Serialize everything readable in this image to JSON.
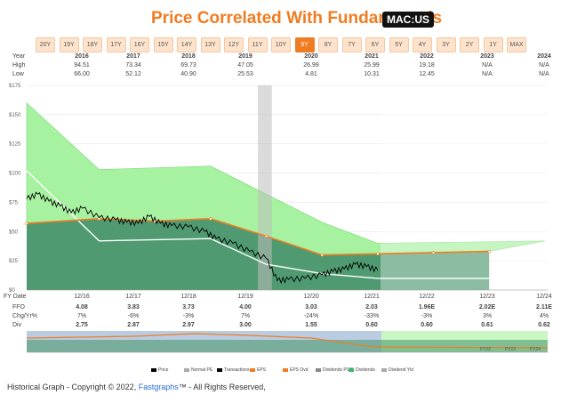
{
  "header": {
    "title": "Price Correlated With Fundamentals",
    "ticker": "MAC:US"
  },
  "range_tabs": [
    "20Y",
    "19Y",
    "18Y",
    "17Y",
    "16Y",
    "15Y",
    "14Y",
    "13Y",
    "12Y",
    "11Y",
    "10Y",
    "9Y",
    "8Y",
    "7Y",
    "6Y",
    "5Y",
    "4Y",
    "3Y",
    "2Y",
    "1Y",
    "MAX"
  ],
  "active_tab": "9Y",
  "top_table": {
    "year_label": "Year",
    "high_label": "High",
    "low_label": "Low",
    "years": [
      "2016",
      "2017",
      "2018",
      "2019",
      "2020",
      "2021",
      "2022",
      "2023",
      "2024"
    ],
    "high": [
      "94.51",
      "73.34",
      "69.73",
      "47.05",
      "26.99",
      "25.99",
      "19.18",
      "N/A",
      "N/A"
    ],
    "low": [
      "66.00",
      "52.12",
      "40.90",
      "25.53",
      "4.81",
      "10.31",
      "12.45",
      "N/A",
      "N/A"
    ]
  },
  "chart_data": {
    "type": "area",
    "y_ticks": [
      "$175",
      "$150",
      "$125",
      "$100",
      "$75",
      "$50",
      "$25",
      "$0"
    ],
    "ylim": [
      0,
      175
    ],
    "x_ticks": [
      "12/16",
      "12/17",
      "12/18",
      "12/19",
      "12/20",
      "12/21",
      "12/22",
      "12/23",
      "12/24"
    ],
    "fy_date_label": "FY Date",
    "normal_pe_upper": [
      {
        "x": 2015.6,
        "y": 160
      },
      {
        "x": 2016.9,
        "y": 103
      },
      {
        "x": 2018.9,
        "y": 106
      },
      {
        "x": 2020.9,
        "y": 58
      },
      {
        "x": 2021.9,
        "y": 40
      },
      {
        "x": 2024.9,
        "y": 42
      }
    ],
    "eps_line": [
      {
        "x": 2015.6,
        "y": 57
      },
      {
        "x": 2016.9,
        "y": 61
      },
      {
        "x": 2017.9,
        "y": 59
      },
      {
        "x": 2018.9,
        "y": 61
      },
      {
        "x": 2019.9,
        "y": 46
      },
      {
        "x": 2020.9,
        "y": 30
      },
      {
        "x": 2021.9,
        "y": 31
      },
      {
        "x": 2022.9,
        "y": 32
      },
      {
        "x": 2023.9,
        "y": 33
      }
    ],
    "normal_pe_line": [
      {
        "x": 2015.6,
        "y": 102
      },
      {
        "x": 2016.9,
        "y": 42
      },
      {
        "x": 2018.9,
        "y": 44
      },
      {
        "x": 2019.9,
        "y": 22
      },
      {
        "x": 2020.9,
        "y": 14
      },
      {
        "x": 2021.9,
        "y": 10
      },
      {
        "x": 2023.9,
        "y": 10
      }
    ],
    "price": [
      {
        "x": 2015.6,
        "y": 78
      },
      {
        "x": 2015.8,
        "y": 82
      },
      {
        "x": 2016.0,
        "y": 76
      },
      {
        "x": 2016.2,
        "y": 72
      },
      {
        "x": 2016.4,
        "y": 66
      },
      {
        "x": 2016.6,
        "y": 70
      },
      {
        "x": 2016.9,
        "y": 62
      },
      {
        "x": 2017.2,
        "y": 60
      },
      {
        "x": 2017.4,
        "y": 58
      },
      {
        "x": 2017.6,
        "y": 57
      },
      {
        "x": 2017.8,
        "y": 63
      },
      {
        "x": 2018.0,
        "y": 57
      },
      {
        "x": 2018.2,
        "y": 55
      },
      {
        "x": 2018.5,
        "y": 54
      },
      {
        "x": 2018.8,
        "y": 50
      },
      {
        "x": 2019.0,
        "y": 44
      },
      {
        "x": 2019.3,
        "y": 40
      },
      {
        "x": 2019.6,
        "y": 33
      },
      {
        "x": 2019.9,
        "y": 27
      },
      {
        "x": 2020.1,
        "y": 8
      },
      {
        "x": 2020.3,
        "y": 9
      },
      {
        "x": 2020.6,
        "y": 10
      },
      {
        "x": 2020.9,
        "y": 13
      },
      {
        "x": 2021.1,
        "y": 16
      },
      {
        "x": 2021.3,
        "y": 18
      },
      {
        "x": 2021.5,
        "y": 22
      },
      {
        "x": 2021.7,
        "y": 20
      },
      {
        "x": 2021.9,
        "y": 17
      }
    ],
    "recession_band": [
      2019.75,
      2020.0
    ]
  },
  "bottom_table": {
    "ffo_label": "FFO",
    "chg_label": "Chg/Yr%",
    "div_label": "Div",
    "ffo": [
      "4.08",
      "3.83",
      "3.73",
      "4.00",
      "3.03",
      "2.03",
      "1.96E",
      "2.02E",
      "2.11E"
    ],
    "chg": [
      "7%",
      "-6%",
      "-3%",
      "7%",
      "-24%",
      "-33%",
      "-3%",
      "3%",
      "4%"
    ],
    "div": [
      "2.75",
      "2.87",
      "2.97",
      "3.00",
      "1.55",
      "0.60",
      "0.60",
      "0.61",
      "0.62"
    ]
  },
  "mini_chart_labels": [
    "FY22",
    "FY23",
    "FY24"
  ],
  "legend": [
    {
      "label": "Price",
      "color": "#000000"
    },
    {
      "label": "Normal PE",
      "color": "#aaaaaa"
    },
    {
      "label": "Transactions",
      "color": "#000000"
    },
    {
      "label": "EPS",
      "color": "#f07c22"
    },
    {
      "label": "EPS Ovd",
      "color": "#f07c22"
    },
    {
      "label": "Dividends POR",
      "color": "#888888"
    },
    {
      "label": "Dividends",
      "color": "#3cb46e"
    },
    {
      "label": "Dividend Yld",
      "color": "#aaaaaa"
    }
  ],
  "footer": {
    "prefix": "Historical Graph - Copyright © 2022, ",
    "brand": "Fastgraphs",
    "suffix": "™ - All Rights Reserved,"
  },
  "colors": {
    "accent": "#f07c22",
    "upper_area": "#a6f2a0",
    "lower_area": "#4f9a70",
    "future_upper": "#c8f7c2",
    "future_lower": "#9ccfb0"
  }
}
